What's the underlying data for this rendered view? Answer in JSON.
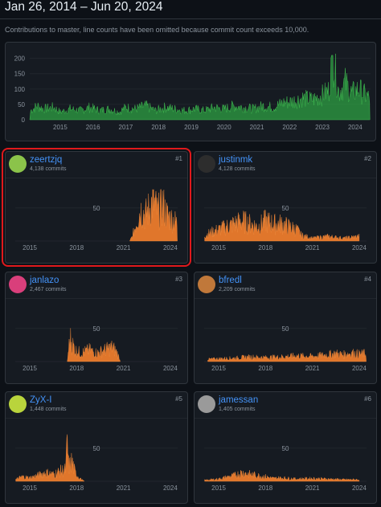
{
  "header": {
    "date_range": "Jan 26, 2014 – Jun 20, 2024",
    "note": "Contributions to master, line counts have been omitted because commit count exceeds 10,000."
  },
  "colors": {
    "overview_fill": "#2ea043",
    "contributor_fill": "#e0762b",
    "selection_outline": "#e0191c",
    "link": "#4493f8"
  },
  "overview_chart": {
    "type": "area",
    "y_ticks": [
      "0",
      "50",
      "100",
      "150",
      "200"
    ],
    "ylim": [
      0,
      220
    ],
    "x_ticks": [
      "2015",
      "2016",
      "2017",
      "2018",
      "2019",
      "2020",
      "2021",
      "2022",
      "2023",
      "2024"
    ],
    "x_range": [
      2014.07,
      2024.47
    ],
    "weekly_commits_profile": [
      [
        2014.1,
        30
      ],
      [
        2014.3,
        45
      ],
      [
        2014.5,
        35
      ],
      [
        2014.8,
        40
      ],
      [
        2015.0,
        25
      ],
      [
        2015.3,
        35
      ],
      [
        2015.6,
        30
      ],
      [
        2015.9,
        40
      ],
      [
        2016.2,
        30
      ],
      [
        2016.5,
        35
      ],
      [
        2016.8,
        25
      ],
      [
        2017.0,
        40
      ],
      [
        2017.3,
        35
      ],
      [
        2017.6,
        45
      ],
      [
        2017.9,
        30
      ],
      [
        2018.2,
        40
      ],
      [
        2018.5,
        35
      ],
      [
        2018.8,
        30
      ],
      [
        2019.1,
        35
      ],
      [
        2019.4,
        30
      ],
      [
        2019.7,
        40
      ],
      [
        2020.0,
        35
      ],
      [
        2020.3,
        45
      ],
      [
        2020.6,
        40
      ],
      [
        2020.9,
        35
      ],
      [
        2021.2,
        45
      ],
      [
        2021.5,
        40
      ],
      [
        2021.8,
        55
      ],
      [
        2022.1,
        60
      ],
      [
        2022.4,
        70
      ],
      [
        2022.7,
        65
      ],
      [
        2023.0,
        80
      ],
      [
        2023.2,
        95
      ],
      [
        2023.3,
        210
      ],
      [
        2023.5,
        90
      ],
      [
        2023.7,
        120
      ],
      [
        2023.9,
        85
      ],
      [
        2024.1,
        100
      ],
      [
        2024.3,
        80
      ],
      [
        2024.45,
        70
      ]
    ]
  },
  "contributors": [
    {
      "rank": "#1",
      "login": "zeertzjq",
      "commits": "4,138 commits",
      "avatar_icon": "green-circle-avatar-icon",
      "avatar_color": "#8bc34a",
      "selected": true,
      "chart": {
        "y_tick": "50",
        "x_ticks": [
          "2015",
          "2018",
          "2021",
          "2024"
        ],
        "activity_profile": [
          [
            2021.4,
            0
          ],
          [
            2021.6,
            10
          ],
          [
            2021.9,
            40
          ],
          [
            2022.1,
            55
          ],
          [
            2022.4,
            45
          ],
          [
            2022.7,
            60
          ],
          [
            2022.9,
            70
          ],
          [
            2023.2,
            50
          ],
          [
            2023.5,
            65
          ],
          [
            2023.8,
            45
          ],
          [
            2024.0,
            40
          ],
          [
            2024.3,
            35
          ],
          [
            2024.45,
            30
          ]
        ]
      }
    },
    {
      "rank": "#2",
      "login": "justinmk",
      "commits": "4,128 commits",
      "avatar_icon": "dark-photo-avatar-icon",
      "avatar_color": "#2d2d2d",
      "selected": false,
      "chart": {
        "y_tick": "50",
        "x_ticks": [
          "2015",
          "2018",
          "2021",
          "2024"
        ],
        "activity_profile": [
          [
            2014.1,
            10
          ],
          [
            2014.5,
            15
          ],
          [
            2015.0,
            20
          ],
          [
            2015.5,
            25
          ],
          [
            2016.0,
            30
          ],
          [
            2016.5,
            35
          ],
          [
            2017.0,
            30
          ],
          [
            2017.5,
            25
          ],
          [
            2018.0,
            35
          ],
          [
            2018.5,
            30
          ],
          [
            2019.0,
            30
          ],
          [
            2019.5,
            25
          ],
          [
            2020.0,
            20
          ],
          [
            2020.3,
            10
          ],
          [
            2021.0,
            5
          ],
          [
            2022.0,
            8
          ],
          [
            2023.0,
            5
          ],
          [
            2024.0,
            8
          ]
        ]
      }
    },
    {
      "rank": "#3",
      "login": "janlazo",
      "commits": "2,467 commits",
      "avatar_icon": "pink-pattern-avatar-icon",
      "avatar_color": "#d93f7b",
      "selected": false,
      "chart": {
        "y_tick": "50",
        "x_ticks": [
          "2015",
          "2018",
          "2021",
          "2024"
        ],
        "activity_profile": [
          [
            2017.4,
            0
          ],
          [
            2017.5,
            25
          ],
          [
            2017.6,
            40
          ],
          [
            2017.9,
            20
          ],
          [
            2018.3,
            15
          ],
          [
            2018.8,
            20
          ],
          [
            2019.3,
            15
          ],
          [
            2019.8,
            20
          ],
          [
            2020.3,
            25
          ],
          [
            2020.6,
            15
          ],
          [
            2020.8,
            0
          ]
        ]
      }
    },
    {
      "rank": "#4",
      "login": "bfredl",
      "commits": "2,209 commits",
      "avatar_icon": "photo-avatar-icon",
      "avatar_color": "#c0783a",
      "selected": false,
      "chart": {
        "y_tick": "50",
        "x_ticks": [
          "2015",
          "2018",
          "2021",
          "2024"
        ],
        "activity_profile": [
          [
            2014.3,
            4
          ],
          [
            2015.0,
            5
          ],
          [
            2016.0,
            6
          ],
          [
            2017.0,
            8
          ],
          [
            2018.0,
            7
          ],
          [
            2019.0,
            8
          ],
          [
            2020.0,
            10
          ],
          [
            2021.0,
            9
          ],
          [
            2022.0,
            12
          ],
          [
            2022.5,
            14
          ],
          [
            2023.0,
            12
          ],
          [
            2023.5,
            15
          ],
          [
            2024.0,
            13
          ],
          [
            2024.45,
            14
          ]
        ]
      }
    },
    {
      "rank": "#5",
      "login": "ZyX-I",
      "commits": "1,448 commits",
      "avatar_icon": "yellow-green-avatar-icon",
      "avatar_color": "#b9d43c",
      "selected": false,
      "chart": {
        "y_tick": "50",
        "x_ticks": [
          "2015",
          "2018",
          "2021",
          "2024"
        ],
        "activity_profile": [
          [
            2014.1,
            3
          ],
          [
            2014.5,
            8
          ],
          [
            2015.0,
            6
          ],
          [
            2015.5,
            10
          ],
          [
            2016.0,
            15
          ],
          [
            2016.5,
            12
          ],
          [
            2017.0,
            18
          ],
          [
            2017.3,
            20
          ],
          [
            2017.4,
            65
          ],
          [
            2017.5,
            25
          ],
          [
            2017.7,
            35
          ],
          [
            2017.9,
            15
          ],
          [
            2018.2,
            5
          ],
          [
            2018.5,
            0
          ]
        ]
      }
    },
    {
      "rank": "#6",
      "login": "jamessan",
      "commits": "1,405 commits",
      "avatar_icon": "person-photo-avatar-icon",
      "avatar_color": "#9a9a9a",
      "selected": false,
      "chart": {
        "y_tick": "50",
        "x_ticks": [
          "2015",
          "2018",
          "2021",
          "2024"
        ],
        "activity_profile": [
          [
            2014.1,
            2
          ],
          [
            2015.0,
            4
          ],
          [
            2016.0,
            10
          ],
          [
            2016.5,
            15
          ],
          [
            2017.0,
            12
          ],
          [
            2017.5,
            10
          ],
          [
            2018.0,
            8
          ],
          [
            2018.5,
            5
          ],
          [
            2019.0,
            6
          ],
          [
            2020.0,
            4
          ],
          [
            2021.0,
            5
          ],
          [
            2022.0,
            4
          ],
          [
            2023.0,
            3
          ],
          [
            2024.0,
            3
          ]
        ]
      }
    }
  ]
}
